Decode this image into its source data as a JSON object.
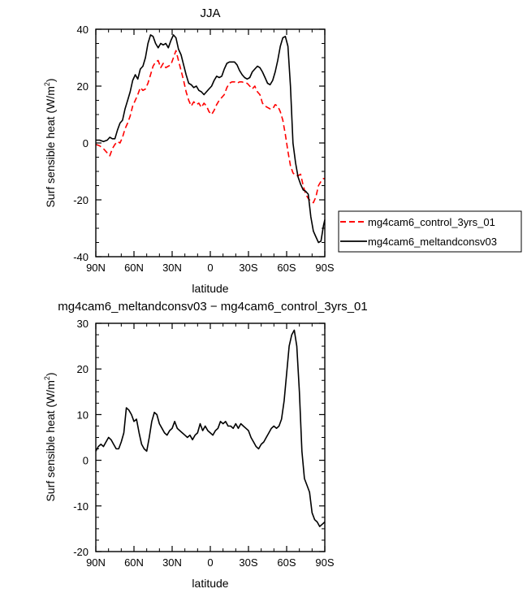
{
  "chart_data": [
    {
      "type": "line",
      "title": "JJA",
      "xlabel": "latitude",
      "ylabel": "Surf sensible heat (W/m",
      "ylabel_sup": "2",
      "ylabel_end": ")",
      "xlim": [
        90,
        -90
      ],
      "ylim": [
        -40,
        40
      ],
      "xticks": [
        90,
        60,
        30,
        0,
        -30,
        -60,
        -90
      ],
      "xtick_labels": [
        "90N",
        "60N",
        "30N",
        "0",
        "30S",
        "60S",
        "90S"
      ],
      "yticks": [
        -40,
        -20,
        0,
        20,
        40
      ],
      "ytick_labels": [
        "-40",
        "-20",
        "0",
        "20",
        "40"
      ],
      "legend": [
        "mg4cam6_control_3yrs_01",
        "mg4cam6_meltandconsv03"
      ],
      "series": [
        {
          "name": "mg4cam6_control_3yrs_01",
          "color": "#ff0000",
          "dash": "dashed",
          "x": [
            90,
            87,
            84,
            81,
            79,
            77,
            75,
            73,
            71,
            69,
            67,
            65,
            63,
            61,
            59,
            57,
            55,
            53,
            51,
            49,
            47,
            45,
            43,
            41,
            39,
            37,
            35,
            33,
            31,
            29,
            27,
            25,
            23,
            21,
            19,
            17,
            15,
            13,
            11,
            9,
            7,
            5,
            3,
            1,
            -1,
            -3,
            -5,
            -7,
            -9,
            -11,
            -13,
            -15,
            -17,
            -19,
            -21,
            -23,
            -25,
            -27,
            -29,
            -31,
            -33,
            -35,
            -37,
            -39,
            -41,
            -43,
            -45,
            -47,
            -49,
            -51,
            -53,
            -55,
            -57,
            -59,
            -61,
            -63,
            -65,
            -67,
            -69,
            -71,
            -73,
            -75,
            -77,
            -79,
            -81,
            -83,
            -85,
            -87,
            -89,
            -90
          ],
          "y": [
            -0.5,
            -1.0,
            -2.0,
            -3.5,
            -4.5,
            -2.0,
            -0.5,
            0.5,
            0.0,
            2.0,
            5.0,
            7.0,
            9.5,
            13.0,
            15.0,
            17.0,
            19.5,
            18.5,
            19.0,
            21.0,
            24.0,
            27.0,
            28.5,
            29.0,
            26.5,
            28.0,
            26.5,
            27.0,
            27.5,
            30.0,
            32.5,
            29.0,
            25.5,
            22.0,
            18.0,
            15.0,
            13.0,
            14.5,
            13.5,
            14.0,
            12.5,
            14.0,
            13.0,
            11.0,
            10.0,
            11.5,
            13.5,
            15.0,
            16.0,
            17.0,
            19.5,
            21.0,
            21.5,
            21.5,
            21.0,
            21.5,
            21.5,
            21.0,
            21.0,
            20.0,
            19.0,
            20.0,
            18.0,
            17.0,
            14.0,
            13.0,
            12.5,
            12.0,
            12.0,
            13.5,
            13.0,
            11.0,
            8.0,
            3.0,
            -3.0,
            -8.0,
            -10.5,
            -11.5,
            -11.5,
            -11.0,
            -15.0,
            -18.0,
            -19.5,
            -20.5,
            -21.0,
            -19.0,
            -15.0,
            -13.5,
            -12.5,
            -12.5
          ]
        },
        {
          "name": "mg4cam6_meltandconsv03",
          "color": "#000000",
          "dash": "solid",
          "x": [
            90,
            87,
            84,
            81,
            79,
            77,
            75,
            73,
            71,
            69,
            67,
            65,
            63,
            61,
            59,
            57,
            55,
            53,
            51,
            49,
            47,
            45,
            43,
            41,
            39,
            37,
            35,
            33,
            31,
            29,
            27,
            25,
            23,
            21,
            19,
            17,
            15,
            13,
            11,
            9,
            7,
            5,
            3,
            1,
            -1,
            -3,
            -5,
            -7,
            -9,
            -11,
            -13,
            -15,
            -17,
            -19,
            -21,
            -23,
            -25,
            -27,
            -29,
            -31,
            -33,
            -35,
            -37,
            -39,
            -41,
            -43,
            -45,
            -47,
            -49,
            -51,
            -53,
            -55,
            -57,
            -59,
            -61,
            -63,
            -65,
            -67,
            -69,
            -71,
            -73,
            -75,
            -77,
            -79,
            -81,
            -83,
            -85,
            -87,
            -89,
            -90
          ],
          "y": [
            1.0,
            1.0,
            0.5,
            1.0,
            2.0,
            1.5,
            1.5,
            4.5,
            7.0,
            8.0,
            12.0,
            15.0,
            18.0,
            22.0,
            24.0,
            22.5,
            26.0,
            27.0,
            30.0,
            35.0,
            38.0,
            37.5,
            35.0,
            33.5,
            35.0,
            34.5,
            35.0,
            33.5,
            36.0,
            38.0,
            37.0,
            33.0,
            31.0,
            27.5,
            24.0,
            21.0,
            20.5,
            19.5,
            20.0,
            18.5,
            18.0,
            17.0,
            18.0,
            19.0,
            20.0,
            22.0,
            23.5,
            23.0,
            23.5,
            26.0,
            28.0,
            28.5,
            28.5,
            28.5,
            27.5,
            25.5,
            24.0,
            23.0,
            22.5,
            23.0,
            25.0,
            26.0,
            27.0,
            26.5,
            25.0,
            23.0,
            21.0,
            20.5,
            22.0,
            25.0,
            29.0,
            34.0,
            37.0,
            37.5,
            34.0,
            20.0,
            0.0,
            -7.0,
            -12.0,
            -14.5,
            -16.5,
            -17.0,
            -18.0,
            -26.0,
            -31.0,
            -33.0,
            -35.0,
            -34.5,
            -29.0,
            -27.0
          ]
        }
      ]
    },
    {
      "type": "line",
      "title": "mg4cam6_meltandconsv03 − mg4cam6_control_3yrs_01",
      "xlabel": "latitude",
      "ylabel": "Surf sensible heat (W/m",
      "ylabel_sup": "2",
      "ylabel_end": ")",
      "xlim": [
        90,
        -90
      ],
      "ylim": [
        -20,
        30
      ],
      "xticks": [
        90,
        60,
        30,
        0,
        -30,
        -60,
        -90
      ],
      "xtick_labels": [
        "90N",
        "60N",
        "30N",
        "0",
        "30S",
        "60S",
        "90S"
      ],
      "yticks": [
        -20,
        -10,
        0,
        10,
        20,
        30
      ],
      "ytick_labels": [
        "-20",
        "-10",
        "0",
        "10",
        "20",
        "30"
      ],
      "series": [
        {
          "name": "mg4cam6_meltandconsv03 − mg4cam6_control_3yrs_01",
          "color": "#000000",
          "dash": "solid",
          "x": [
            90,
            88,
            86,
            84,
            82,
            80,
            78,
            76,
            74,
            72,
            70,
            68,
            66,
            64,
            62,
            60,
            58,
            56,
            54,
            52,
            50,
            48,
            46,
            44,
            42,
            40,
            38,
            36,
            34,
            32,
            30,
            28,
            26,
            24,
            22,
            20,
            18,
            16,
            14,
            12,
            10,
            8,
            6,
            4,
            2,
            0,
            -2,
            -4,
            -6,
            -8,
            -10,
            -12,
            -14,
            -16,
            -18,
            -20,
            -22,
            -24,
            -26,
            -28,
            -30,
            -32,
            -34,
            -36,
            -38,
            -40,
            -42,
            -44,
            -46,
            -48,
            -50,
            -52,
            -54,
            -56,
            -58,
            -60,
            -62,
            -64,
            -66,
            -68,
            -70,
            -72,
            -74,
            -76,
            -78,
            -80,
            -82,
            -84,
            -86,
            -88,
            -90
          ],
          "y": [
            2.0,
            3.0,
            3.5,
            3.0,
            4.0,
            5.0,
            4.5,
            3.5,
            2.5,
            2.5,
            4.0,
            6.0,
            11.5,
            11.0,
            10.0,
            8.5,
            9.0,
            6.0,
            3.5,
            2.5,
            2.0,
            5.0,
            8.5,
            10.5,
            10.0,
            8.0,
            7.0,
            6.0,
            5.5,
            6.5,
            7.0,
            8.5,
            7.0,
            6.5,
            6.0,
            5.5,
            5.0,
            5.5,
            4.5,
            5.5,
            6.0,
            8.0,
            6.5,
            7.5,
            6.5,
            6.0,
            5.5,
            6.5,
            7.0,
            8.5,
            8.0,
            8.5,
            7.5,
            7.5,
            7.0,
            8.0,
            7.0,
            8.0,
            7.5,
            7.0,
            6.5,
            5.0,
            4.0,
            3.0,
            2.5,
            3.5,
            4.0,
            5.0,
            6.0,
            7.0,
            7.5,
            7.0,
            7.5,
            9.0,
            13.0,
            19.0,
            25.0,
            27.5,
            28.5,
            25.0,
            15.0,
            2.0,
            -4.0,
            -5.5,
            -7.0,
            -11.5,
            -13.0,
            -13.5,
            -14.5,
            -14.0,
            -13.5
          ]
        }
      ]
    }
  ]
}
